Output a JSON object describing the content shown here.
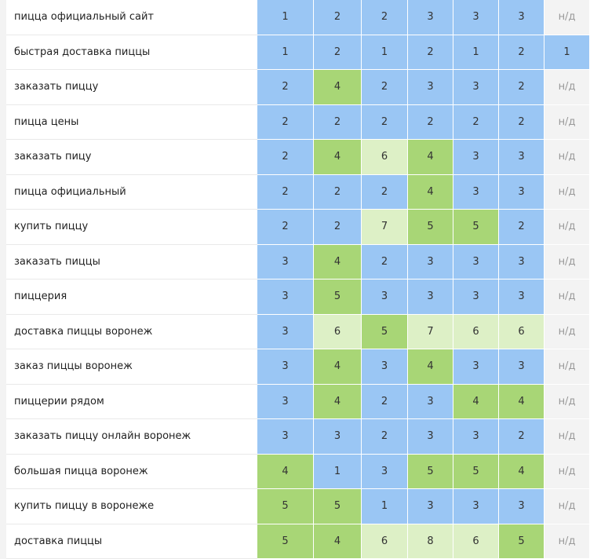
{
  "table": {
    "rows": [
      {
        "keyword": "пицца официальный сайт",
        "cells": [
          1,
          2,
          2,
          3,
          3,
          3,
          "н/д"
        ]
      },
      {
        "keyword": "быстрая доставка пиццы",
        "cells": [
          1,
          2,
          1,
          2,
          1,
          2,
          1
        ]
      },
      {
        "keyword": "заказать пиццу",
        "cells": [
          2,
          4,
          2,
          3,
          3,
          2,
          "н/д"
        ]
      },
      {
        "keyword": "пицца цены",
        "cells": [
          2,
          2,
          2,
          2,
          2,
          2,
          "н/д"
        ]
      },
      {
        "keyword": "заказать пицу",
        "cells": [
          2,
          4,
          6,
          4,
          3,
          3,
          "н/д"
        ]
      },
      {
        "keyword": "пицца официальный",
        "cells": [
          2,
          2,
          2,
          4,
          3,
          3,
          "н/д"
        ]
      },
      {
        "keyword": "купить пиццу",
        "cells": [
          2,
          2,
          7,
          5,
          5,
          2,
          "н/д"
        ]
      },
      {
        "keyword": "заказать пиццы",
        "cells": [
          3,
          4,
          2,
          3,
          3,
          3,
          "н/д"
        ]
      },
      {
        "keyword": "пиццерия",
        "cells": [
          3,
          5,
          3,
          3,
          3,
          3,
          "н/д"
        ]
      },
      {
        "keyword": "доставка пиццы воронеж",
        "cells": [
          3,
          6,
          5,
          7,
          6,
          6,
          "н/д"
        ]
      },
      {
        "keyword": "заказ пиццы воронеж",
        "cells": [
          3,
          4,
          3,
          4,
          3,
          3,
          "н/д"
        ]
      },
      {
        "keyword": "пиццерии рядом",
        "cells": [
          3,
          4,
          2,
          3,
          4,
          4,
          "н/д"
        ]
      },
      {
        "keyword": "заказать пиццу онлайн воронеж",
        "cells": [
          3,
          3,
          2,
          3,
          3,
          2,
          "н/д"
        ]
      },
      {
        "keyword": "большая пицца воронеж",
        "cells": [
          4,
          1,
          3,
          5,
          5,
          4,
          "н/д"
        ]
      },
      {
        "keyword": "купить пиццу в воронеже",
        "cells": [
          5,
          5,
          1,
          3,
          3,
          3,
          "н/д"
        ]
      },
      {
        "keyword": "доставка пиццы",
        "cells": [
          5,
          4,
          6,
          8,
          6,
          5,
          "н/д"
        ]
      }
    ]
  }
}
